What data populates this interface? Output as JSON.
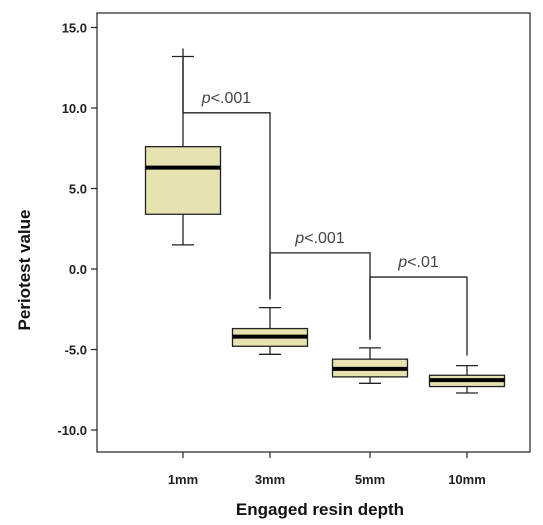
{
  "chart_data": {
    "type": "box",
    "xlabel": "Engaged resin depth",
    "ylabel": "Periotest value",
    "ylim": [
      -12,
      17
    ],
    "yticks": [
      "15.0",
      "10.0",
      "5.0",
      "0.0",
      "-5.0",
      "-10.0"
    ],
    "ytick_values": [
      15,
      10,
      5,
      0,
      -5,
      -10
    ],
    "categories": [
      "1mm",
      "3mm",
      "5mm",
      "10mm"
    ],
    "boxes": [
      {
        "category": "1mm",
        "min": 1.5,
        "q1": 3.4,
        "median": 6.3,
        "q3": 7.6,
        "max": 13.2
      },
      {
        "category": "3mm",
        "min": -5.3,
        "q1": -4.8,
        "median": -4.2,
        "q3": -3.7,
        "max": -2.4
      },
      {
        "category": "5mm",
        "min": -7.1,
        "q1": -6.7,
        "median": -6.2,
        "q3": -5.6,
        "max": -4.9
      },
      {
        "category": "10mm",
        "min": -7.7,
        "q1": -7.3,
        "median": -6.9,
        "q3": -6.6,
        "max": -6.0
      }
    ],
    "box_fill": "#e6e3b0",
    "annotations": [
      {
        "from": "1mm",
        "to": "3mm",
        "level": 9.7,
        "label_prefix": "p",
        "label_rest": "<.001"
      },
      {
        "from": "3mm",
        "to": "5mm",
        "level": 1.0,
        "label_prefix": "p",
        "label_rest": "<.001"
      },
      {
        "from": "5mm",
        "to": "10mm",
        "level": -0.5,
        "label_prefix": "p",
        "label_rest": "<.01"
      }
    ]
  }
}
